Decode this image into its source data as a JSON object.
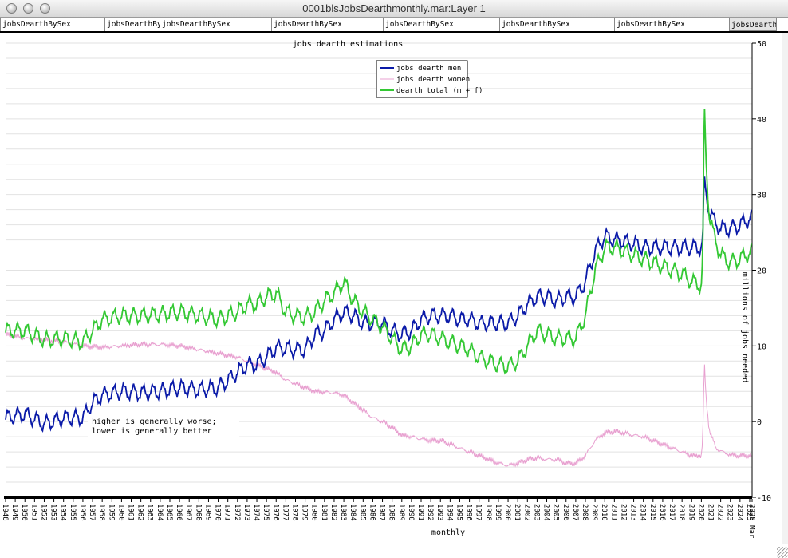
{
  "window": {
    "title": "0001blsJobsDearthmonthly.mar:Layer 1"
  },
  "tabs": [
    {
      "label": "jobsDearthBySex"
    },
    {
      "label": "jobsDearthBy"
    },
    {
      "label": "jobsDearthBySex"
    },
    {
      "label": "jobsDearthBySex"
    },
    {
      "label": "jobsDearthBySex"
    },
    {
      "label": "jobsDearthBySex"
    },
    {
      "label": "jobsDearthBySex"
    },
    {
      "label": "jobsDearthB"
    }
  ],
  "chart_data": {
    "type": "line",
    "title": "jobs dearth estimations",
    "xlabel": "monthly",
    "ylabel": "millions of jobs needed",
    "ylim": [
      -10,
      50
    ],
    "xlim": [
      1948,
      2025.25
    ],
    "y_ticks": [
      -10,
      0,
      10,
      20,
      30,
      40,
      50
    ],
    "grid": true,
    "legend_position": "top-center",
    "annotation": [
      "higher is generally worse;",
      "lower is generally better"
    ],
    "x_tick_labels": [
      "1948",
      "1949",
      "1950",
      "1951",
      "1952",
      "1953",
      "1954",
      "1955",
      "1956",
      "1957",
      "1958",
      "1959",
      "1960",
      "1961",
      "1962",
      "1963",
      "1964",
      "1965",
      "1966",
      "1967",
      "1968",
      "1969",
      "1970",
      "1971",
      "1972",
      "1973",
      "1974",
      "1975",
      "1976",
      "1977",
      "1978",
      "1979",
      "1980",
      "1981",
      "1982",
      "1983",
      "1984",
      "1985",
      "1986",
      "1987",
      "1988",
      "1989",
      "1990",
      "1991",
      "1992",
      "1993",
      "1994",
      "1995",
      "1996",
      "1997",
      "1998",
      "1999",
      "2000",
      "2001",
      "2002",
      "2003",
      "2004",
      "2005",
      "2006",
      "2007",
      "2008",
      "2009",
      "2010",
      "2011",
      "2012",
      "2013",
      "2014",
      "2015",
      "2016",
      "2017",
      "2018",
      "2019",
      "2020",
      "2021",
      "2022",
      "2023",
      "2024",
      "2025",
      "2025 Mar"
    ],
    "seasonal_amplitude": 0.9,
    "series": [
      {
        "name": "jobs dearth men",
        "color": "#0a1aa8",
        "points": [
          [
            1948,
            0.5
          ],
          [
            1950,
            1.0
          ],
          [
            1952,
            -0.3
          ],
          [
            1954,
            0.5
          ],
          [
            1956,
            0.5
          ],
          [
            1957,
            2.5
          ],
          [
            1958,
            3.5
          ],
          [
            1960,
            4.0
          ],
          [
            1962,
            3.8
          ],
          [
            1964,
            4.0
          ],
          [
            1966,
            4.5
          ],
          [
            1968,
            4.2
          ],
          [
            1970,
            4.5
          ],
          [
            1971,
            5.5
          ],
          [
            1972,
            6.5
          ],
          [
            1973,
            7.5
          ],
          [
            1974,
            7.5
          ],
          [
            1975,
            8.5
          ],
          [
            1976,
            9.8
          ],
          [
            1978,
            9.5
          ],
          [
            1979,
            9.5
          ],
          [
            1980,
            11.5
          ],
          [
            1981,
            12.0
          ],
          [
            1982,
            13.5
          ],
          [
            1983,
            14.5
          ],
          [
            1984,
            14.0
          ],
          [
            1985,
            13.0
          ],
          [
            1986,
            13.0
          ],
          [
            1987,
            13.0
          ],
          [
            1988,
            12.0
          ],
          [
            1989,
            11.5
          ],
          [
            1990,
            12.0
          ],
          [
            1991,
            13.5
          ],
          [
            1992,
            14.0
          ],
          [
            1993,
            14.0
          ],
          [
            1994,
            14.0
          ],
          [
            1995,
            13.5
          ],
          [
            1996,
            13.5
          ],
          [
            1997,
            13.0
          ],
          [
            1998,
            13.0
          ],
          [
            1999,
            13.0
          ],
          [
            2000,
            13.0
          ],
          [
            2001,
            14.0
          ],
          [
            2002,
            15.5
          ],
          [
            2003,
            16.5
          ],
          [
            2004,
            16.5
          ],
          [
            2005,
            16.0
          ],
          [
            2006,
            16.5
          ],
          [
            2007,
            16.5
          ],
          [
            2008,
            18.5
          ],
          [
            2009,
            22.5
          ],
          [
            2010,
            24.5
          ],
          [
            2011,
            24.0
          ],
          [
            2012,
            23.8
          ],
          [
            2013,
            23.5
          ],
          [
            2014,
            23.0
          ],
          [
            2015,
            23.0
          ],
          [
            2016,
            23.0
          ],
          [
            2017,
            23.0
          ],
          [
            2018,
            23.0
          ],
          [
            2019,
            23.0
          ],
          [
            2020.0,
            23.0
          ],
          [
            2020.15,
            24.0
          ],
          [
            2020.3,
            32.0
          ],
          [
            2020.5,
            30.0
          ],
          [
            2020.8,
            28.0
          ],
          [
            2021.3,
            26.5
          ],
          [
            2022,
            25.5
          ],
          [
            2023,
            25.5
          ],
          [
            2024,
            26.0
          ],
          [
            2025.2,
            27.0
          ]
        ]
      },
      {
        "name": "jobs dearth women",
        "color": "#e8a0d0",
        "points": [
          [
            1948,
            11.5
          ],
          [
            1950,
            11.0
          ],
          [
            1952,
            10.8
          ],
          [
            1954,
            10.5
          ],
          [
            1956,
            10.0
          ],
          [
            1958,
            9.8
          ],
          [
            1960,
            10.0
          ],
          [
            1962,
            10.2
          ],
          [
            1964,
            10.2
          ],
          [
            1966,
            10.0
          ],
          [
            1968,
            9.5
          ],
          [
            1970,
            9.0
          ],
          [
            1972,
            8.5
          ],
          [
            1974,
            7.5
          ],
          [
            1975,
            7.0
          ],
          [
            1976,
            6.5
          ],
          [
            1977,
            5.5
          ],
          [
            1978,
            5.0
          ],
          [
            1979,
            4.5
          ],
          [
            1980,
            4.0
          ],
          [
            1982,
            3.8
          ],
          [
            1983,
            3.5
          ],
          [
            1984,
            2.5
          ],
          [
            1985,
            1.5
          ],
          [
            1986,
            0.5
          ],
          [
            1987,
            0.0
          ],
          [
            1988,
            -0.8
          ],
          [
            1989,
            -1.8
          ],
          [
            1990,
            -2.0
          ],
          [
            1991,
            -2.3
          ],
          [
            1992,
            -2.5
          ],
          [
            1993,
            -2.5
          ],
          [
            1994,
            -3.0
          ],
          [
            1995,
            -3.5
          ],
          [
            1996,
            -4.0
          ],
          [
            1997,
            -4.5
          ],
          [
            1998,
            -5.0
          ],
          [
            1999,
            -5.5
          ],
          [
            2000,
            -5.8
          ],
          [
            2001,
            -5.5
          ],
          [
            2002,
            -5.0
          ],
          [
            2003,
            -4.8
          ],
          [
            2004,
            -5.0
          ],
          [
            2005,
            -5.0
          ],
          [
            2006,
            -5.5
          ],
          [
            2007,
            -5.5
          ],
          [
            2008,
            -4.5
          ],
          [
            2009,
            -2.5
          ],
          [
            2010,
            -1.5
          ],
          [
            2011,
            -1.3
          ],
          [
            2012,
            -1.5
          ],
          [
            2013,
            -1.8
          ],
          [
            2014,
            -2.0
          ],
          [
            2015,
            -2.5
          ],
          [
            2016,
            -3.0
          ],
          [
            2017,
            -3.5
          ],
          [
            2018,
            -4.0
          ],
          [
            2019,
            -4.5
          ],
          [
            2020.0,
            -4.5
          ],
          [
            2020.15,
            -2.0
          ],
          [
            2020.3,
            8.0
          ],
          [
            2020.5,
            3.0
          ],
          [
            2020.8,
            -1.0
          ],
          [
            2021.5,
            -3.5
          ],
          [
            2022.5,
            -4.2
          ],
          [
            2023.5,
            -4.5
          ],
          [
            2025.2,
            -4.5
          ]
        ]
      },
      {
        "name": "dearth total (m + f)",
        "color": "#33c833",
        "points": [
          [
            1948,
            12.0
          ],
          [
            1950,
            12.0
          ],
          [
            1952,
            10.8
          ],
          [
            1954,
            11.0
          ],
          [
            1956,
            10.5
          ],
          [
            1958,
            13.5
          ],
          [
            1960,
            14.0
          ],
          [
            1962,
            14.0
          ],
          [
            1964,
            14.2
          ],
          [
            1966,
            14.5
          ],
          [
            1968,
            14.0
          ],
          [
            1970,
            13.5
          ],
          [
            1972,
            14.5
          ],
          [
            1973,
            15.5
          ],
          [
            1974,
            15.5
          ],
          [
            1975,
            16.5
          ],
          [
            1976,
            17.0
          ],
          [
            1977,
            14.5
          ],
          [
            1978,
            14.0
          ],
          [
            1979,
            13.8
          ],
          [
            1980,
            14.5
          ],
          [
            1981,
            16.0
          ],
          [
            1982,
            17.0
          ],
          [
            1983,
            18.5
          ],
          [
            1984,
            16.0
          ],
          [
            1985,
            14.5
          ],
          [
            1986,
            13.5
          ],
          [
            1987,
            12.5
          ],
          [
            1988,
            11.0
          ],
          [
            1989,
            9.5
          ],
          [
            1990,
            10.0
          ],
          [
            1991,
            11.5
          ],
          [
            1992,
            11.5
          ],
          [
            1993,
            11.0
          ],
          [
            1994,
            10.5
          ],
          [
            1995,
            10.0
          ],
          [
            1996,
            9.5
          ],
          [
            1997,
            8.5
          ],
          [
            1998,
            8.0
          ],
          [
            1999,
            7.5
          ],
          [
            2000,
            7.3
          ],
          [
            2001,
            8.0
          ],
          [
            2002,
            10.0
          ],
          [
            2003,
            12.0
          ],
          [
            2004,
            11.5
          ],
          [
            2005,
            11.0
          ],
          [
            2006,
            11.0
          ],
          [
            2007,
            11.0
          ],
          [
            2008,
            14.0
          ],
          [
            2009,
            20.0
          ],
          [
            2010,
            23.0
          ],
          [
            2011,
            23.0
          ],
          [
            2012,
            22.5
          ],
          [
            2013,
            22.0
          ],
          [
            2014,
            21.5
          ],
          [
            2015,
            21.0
          ],
          [
            2016,
            20.5
          ],
          [
            2017,
            20.0
          ],
          [
            2018,
            19.5
          ],
          [
            2019,
            18.5
          ],
          [
            2020.0,
            18.0
          ],
          [
            2020.15,
            22.0
          ],
          [
            2020.3,
            42.0
          ],
          [
            2020.5,
            34.0
          ],
          [
            2020.8,
            27.5
          ],
          [
            2021.3,
            24.5
          ],
          [
            2022,
            22.0
          ],
          [
            2023,
            21.0
          ],
          [
            2024,
            21.5
          ],
          [
            2025.2,
            22.5
          ]
        ]
      }
    ]
  }
}
